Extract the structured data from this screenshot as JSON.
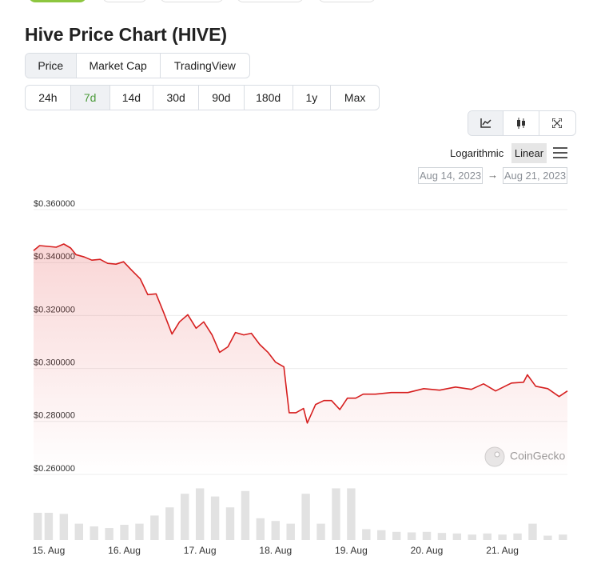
{
  "header": {
    "title": "Hive Price Chart (HIVE)"
  },
  "tabs": [
    "Price",
    "Market Cap",
    "TradingView"
  ],
  "ranges": [
    "24h",
    "7d",
    "14d",
    "30d",
    "90d",
    "180d",
    "1y",
    "Max"
  ],
  "scale_options": [
    "Logarithmic",
    "Linear"
  ],
  "date_range": {
    "from": "Aug 14, 2023",
    "arrow": "→",
    "to": "Aug 21, 2023"
  },
  "watermark": "CoinGecko",
  "chart_data": {
    "type": "line",
    "color": "#d61f1f",
    "x": [
      14.8,
      14.88,
      14.99,
      15.1,
      15.2,
      15.29,
      15.36,
      15.47,
      15.57,
      15.68,
      15.78,
      15.89,
      15.99,
      16.1,
      16.21,
      16.31,
      16.42,
      16.52,
      16.63,
      16.73,
      16.84,
      16.95,
      17.05,
      17.16,
      17.26,
      17.37,
      17.47,
      17.58,
      17.68,
      17.79,
      17.9,
      18.0,
      18.11,
      18.18,
      18.27,
      18.37,
      18.42,
      18.53,
      18.64,
      18.74,
      18.85,
      18.95,
      19.06,
      19.16,
      19.32,
      19.53,
      19.75,
      19.96,
      20.17,
      20.38,
      20.59,
      20.75,
      20.91,
      21.12,
      21.28,
      21.33,
      21.44,
      21.6,
      21.75,
      21.86
    ],
    "values": [
      0.3445,
      0.3464,
      0.3461,
      0.3458,
      0.347,
      0.3455,
      0.343,
      0.3421,
      0.3409,
      0.3412,
      0.3397,
      0.3394,
      0.3403,
      0.337,
      0.3339,
      0.3279,
      0.3282,
      0.3212,
      0.313,
      0.3176,
      0.3203,
      0.3152,
      0.3176,
      0.3127,
      0.3061,
      0.3082,
      0.3136,
      0.3127,
      0.3133,
      0.3091,
      0.3061,
      0.3024,
      0.3006,
      0.2833,
      0.2833,
      0.2849,
      0.2794,
      0.2864,
      0.2879,
      0.2879,
      0.2845,
      0.2888,
      0.2888,
      0.2903,
      0.2903,
      0.2909,
      0.2909,
      0.2924,
      0.2918,
      0.293,
      0.2921,
      0.2942,
      0.2915,
      0.2945,
      0.2948,
      0.2976,
      0.2933,
      0.2924,
      0.2894,
      0.2915
    ],
    "xlim": [
      14.8,
      21.86
    ],
    "xticks": [
      {
        "value": 15,
        "label": "15. Aug"
      },
      {
        "value": 16,
        "label": "16. Aug"
      },
      {
        "value": 17,
        "label": "17. Aug"
      },
      {
        "value": 18,
        "label": "18. Aug"
      },
      {
        "value": 19,
        "label": "19. Aug"
      },
      {
        "value": 20,
        "label": "20. Aug"
      },
      {
        "value": 21,
        "label": "21. Aug"
      }
    ],
    "ylim": [
      0.26,
      0.36
    ],
    "yticks": [
      {
        "value": 0.36,
        "label": "$0.360000"
      },
      {
        "value": 0.34,
        "label": "$0.340000"
      },
      {
        "value": 0.32,
        "label": "$0.320000"
      },
      {
        "value": 0.3,
        "label": "$0.300000"
      },
      {
        "value": 0.28,
        "label": "$0.280000"
      },
      {
        "value": 0.26,
        "label": "$0.260000"
      }
    ],
    "grid": true,
    "volume": {
      "type": "bar",
      "color": "#e2e2e2",
      "x": [
        14.8,
        15.0,
        15.2,
        15.4,
        15.6,
        15.8,
        16.0,
        16.2,
        16.4,
        16.6,
        16.8,
        17.0,
        17.2,
        17.4,
        17.6,
        17.8,
        18.0,
        18.2,
        18.4,
        18.6,
        18.8,
        19.0,
        19.2,
        19.4,
        19.6,
        19.8,
        20.0,
        20.2,
        20.4,
        20.6,
        20.8,
        21.0,
        21.2,
        21.4,
        21.6,
        21.8
      ],
      "values": [
        50,
        50,
        48,
        30,
        25,
        22,
        28,
        30,
        45,
        60,
        85,
        95,
        80,
        60,
        90,
        40,
        35,
        30,
        85,
        30,
        95,
        95,
        20,
        18,
        15,
        14,
        15,
        13,
        12,
        10,
        12,
        10,
        12,
        30,
        8,
        10
      ]
    }
  }
}
